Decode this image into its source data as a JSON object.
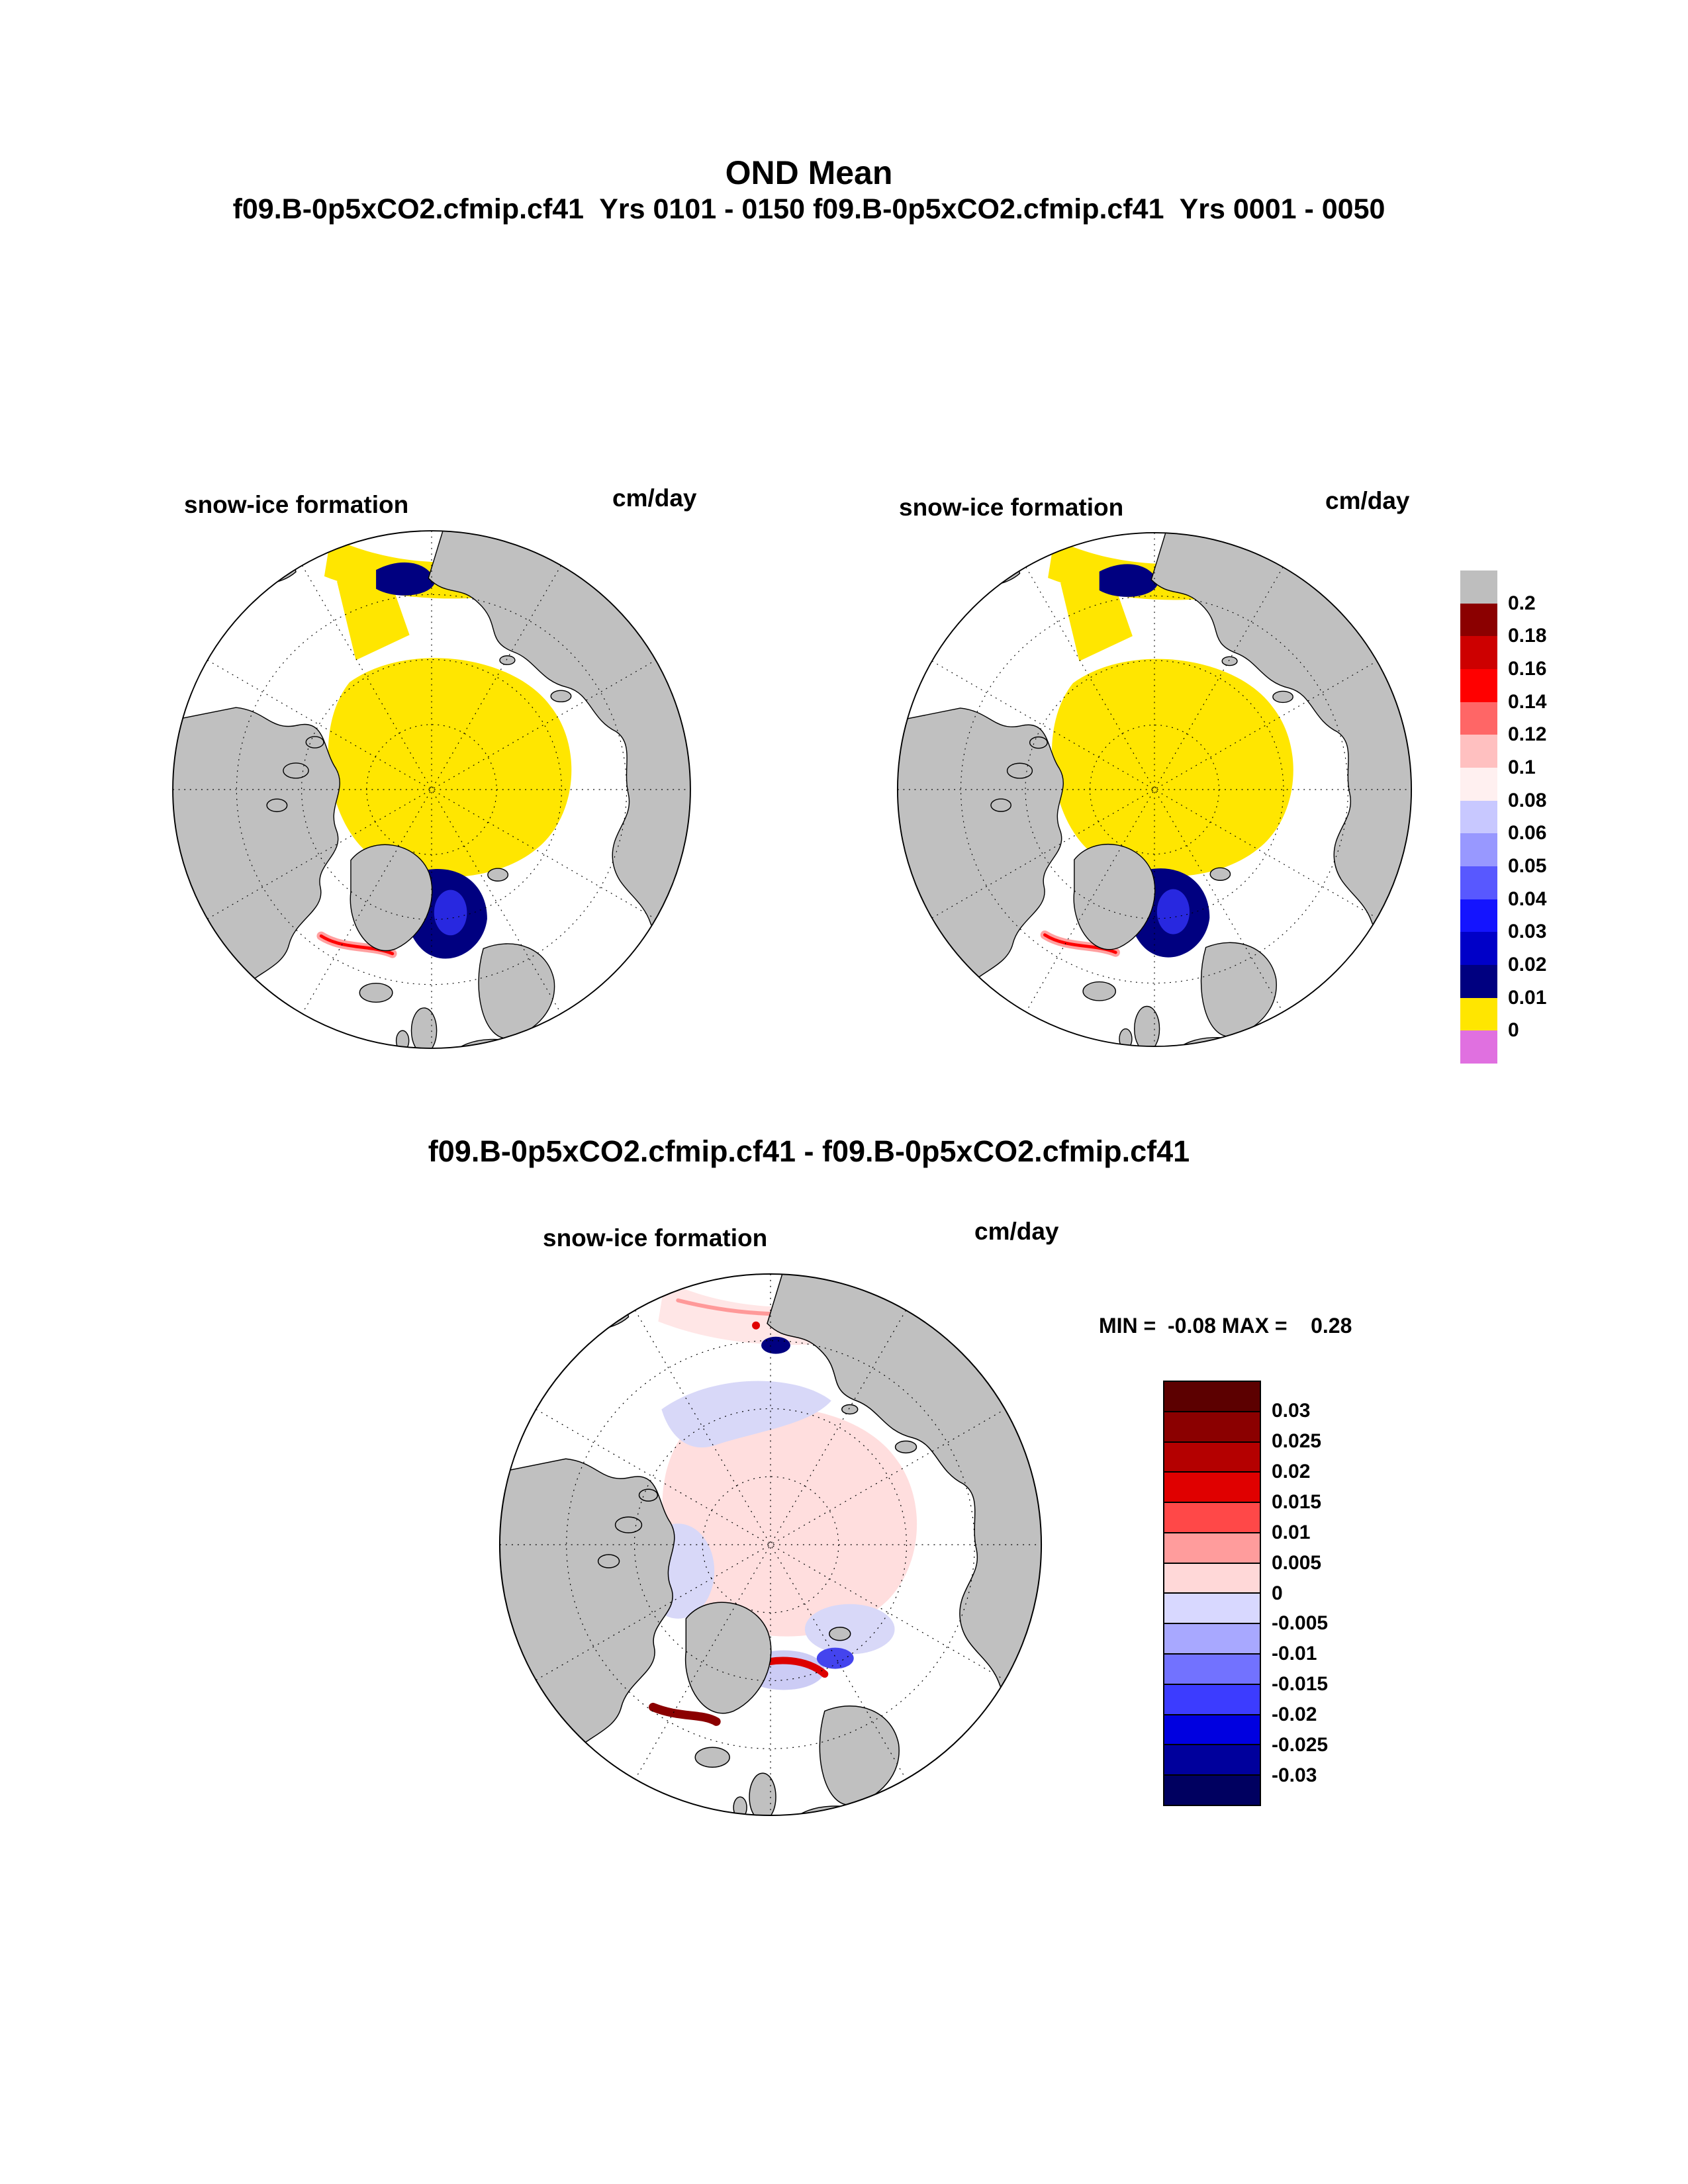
{
  "header": {
    "title": "OND Mean",
    "subtitle": "f09.B-0p5xCO2.cfmip.cf41  Yrs 0101 - 0150 f09.B-0p5xCO2.cfmip.cf41  Yrs 0001 - 0050"
  },
  "panels": {
    "top_left": {
      "case": "f09.B-0p5xCO2.cfmip.cf41",
      "years": "Yrs 0101 - 0150",
      "label": "snow-ice formation",
      "units": "cm/day"
    },
    "top_right": {
      "case": "f09.B-0p5xCO2.cfmip.cf41",
      "years": "Yrs 0001 - 0050",
      "label": "snow-ice formation",
      "units": "cm/day"
    },
    "diff": {
      "title": "f09.B-0p5xCO2.cfmip.cf41 - f09.B-0p5xCO2.cfmip.cf41",
      "label": "snow-ice formation",
      "units": "cm/day",
      "stats": "MIN =  -0.08 MAX =    0.28",
      "min": -0.08,
      "max": 0.28
    }
  },
  "colorbar_top": {
    "units": "cm/day",
    "colors": [
      "#bebebe",
      "#8b0000",
      "#cd0000",
      "#ff0000",
      "#ff6666",
      "#ffc0c0",
      "#fff0f0",
      "#c8c8ff",
      "#9898ff",
      "#5858ff",
      "#1414ff",
      "#0000c8",
      "#000080",
      "#ffe600",
      "#e070e0"
    ],
    "labels": [
      "0.2",
      "0.18",
      "0.16",
      "0.14",
      "0.12",
      "0.1",
      "0.08",
      "0.06",
      "0.05",
      "0.04",
      "0.03",
      "0.02",
      "0.01",
      "0"
    ]
  },
  "colorbar_diff": {
    "units": "cm/day",
    "colors": [
      "#5c0000",
      "#8b0000",
      "#b40000",
      "#e00000",
      "#ff4848",
      "#ff9c9c",
      "#ffd8d8",
      "#d8d8ff",
      "#a8a8ff",
      "#7272ff",
      "#3c3cff",
      "#0000e0",
      "#00009c",
      "#000060"
    ],
    "labels": [
      "0.03",
      "0.025",
      "0.02",
      "0.015",
      "0.01",
      "0.005",
      "0",
      "-0.005",
      "-0.01",
      "-0.015",
      "-0.02",
      "-0.025",
      "-0.03"
    ]
  },
  "chart_data": [
    {
      "type": "heatmap",
      "subtype": "north-polar-stereographic-map",
      "title": "f09.B-0p5xCO2.cfmip.cf41  Yrs 0101 - 0150",
      "variable": "snow-ice formation",
      "units": "cm/day",
      "legend_position": "right",
      "levels": [
        0,
        0.01,
        0.02,
        0.03,
        0.04,
        0.05,
        0.06,
        0.08,
        0.1,
        0.12,
        0.14,
        0.16,
        0.18,
        0.2
      ],
      "palette_high_to_low": [
        "#bebebe",
        "#8b0000",
        "#cd0000",
        "#ff0000",
        "#ff6666",
        "#ffc0c0",
        "#fff0f0",
        "#c8c8ff",
        "#9898ff",
        "#5858ff",
        "#1414ff",
        "#0000c8",
        "#000080",
        "#ffe600",
        "#e070e0"
      ],
      "dominant_field": "central Arctic ocean in 0-0.01 cm/day (yellow); 0.01-0.05 cm/day (dark blue) patches in Greenland/Barents seas and along Bering/Chukchi band; small 0.1-0.16 cm/day (red/pink) streak near Iceland; land gray; graticule dashed"
    },
    {
      "type": "heatmap",
      "subtype": "north-polar-stereographic-map",
      "title": "f09.B-0p5xCO2.cfmip.cf41  Yrs 0001 - 0050",
      "variable": "snow-ice formation",
      "units": "cm/day",
      "legend_position": "right",
      "levels": [
        0,
        0.01,
        0.02,
        0.03,
        0.04,
        0.05,
        0.06,
        0.08,
        0.1,
        0.12,
        0.14,
        0.16,
        0.18,
        0.2
      ],
      "palette_high_to_low": [
        "#bebebe",
        "#8b0000",
        "#cd0000",
        "#ff0000",
        "#ff6666",
        "#ffc0c0",
        "#fff0f0",
        "#c8c8ff",
        "#9898ff",
        "#5858ff",
        "#1414ff",
        "#0000c8",
        "#000080",
        "#ffe600",
        "#e070e0"
      ],
      "dominant_field": "nearly identical to period 0101-0150: yellow central Arctic, dark blue Greenland/Barents sea patches, blue band near Bering strait"
    },
    {
      "type": "heatmap",
      "subtype": "north-polar-stereographic-map-difference",
      "title": "f09.B-0p5xCO2.cfmip.cf41 - f09.B-0p5xCO2.cfmip.cf41",
      "variable": "snow-ice formation",
      "units": "cm/day",
      "min": -0.08,
      "max": 0.28,
      "legend_position": "right",
      "levels": [
        -0.03,
        -0.025,
        -0.02,
        -0.015,
        -0.01,
        -0.005,
        0,
        0.005,
        0.01,
        0.015,
        0.02,
        0.025,
        0.03
      ],
      "palette_high_to_low": [
        "#5c0000",
        "#8b0000",
        "#b40000",
        "#e00000",
        "#ff4848",
        "#ff9c9c",
        "#ffd8d8",
        "#d8d8ff",
        "#a8a8ff",
        "#7272ff",
        "#3c3cff",
        "#0000e0",
        "#00009c",
        "#000060"
      ],
      "dominant_field": "pale pink (0 to 0.005) central Arctic, pale blue (-0.005 to 0) ring, strong red (>0.02) streaks in Norwegian/Greenland seas, dark red streak near Iceland, small dark blue patch near Bering strait"
    }
  ]
}
